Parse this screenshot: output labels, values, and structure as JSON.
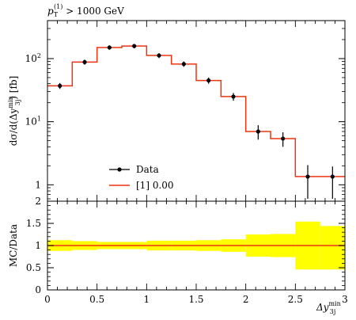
{
  "chart_data": [
    {
      "panel": "main",
      "type": "line",
      "title": "p_T^(1) > 1000 GeV",
      "title_parts": {
        "p": "p",
        "sub": "T",
        "sup": "(1)",
        "rest": " > 1000 GeV"
      },
      "ylabel_parts": {
        "pre": "dσ/d(Δy",
        "sup": "min",
        "sub": "3j",
        "post": ") [fb]"
      },
      "yscale": "log",
      "ylim": [
        0.55,
        400
      ],
      "xlim": [
        0,
        3
      ],
      "yticks": [
        {
          "value": 1,
          "label": "1"
        },
        {
          "value": 10,
          "label": "10",
          "exp": "1"
        },
        {
          "value": 100,
          "label": "10",
          "exp": "2"
        }
      ],
      "bin_edges": [
        0,
        0.25,
        0.5,
        0.75,
        1.0,
        1.25,
        1.5,
        1.75,
        2.0,
        2.25,
        2.5,
        2.75,
        3.0
      ],
      "series": [
        {
          "name": "Data",
          "style": "points-with-errors",
          "color": "#000000",
          "x": [
            0.125,
            0.375,
            0.625,
            0.875,
            1.125,
            1.375,
            1.625,
            1.875,
            2.125,
            2.375,
            2.625,
            2.875
          ],
          "y": [
            37,
            88,
            150,
            158,
            112,
            82,
            45,
            25,
            7.0,
            5.4,
            1.35,
            1.35
          ],
          "yerr_lo": [
            4,
            8,
            12,
            12,
            10,
            8,
            5,
            3.5,
            1.8,
            1.4,
            0.75,
            0.75
          ],
          "yerr_hi": [
            4,
            8,
            12,
            12,
            10,
            8,
            5,
            3.5,
            1.8,
            1.4,
            0.7,
            0.6
          ]
        },
        {
          "name": "[1] 0.00",
          "style": "histogram",
          "color": "#ee3311",
          "values": [
            37,
            88,
            150,
            158,
            112,
            82,
            45,
            25,
            7.0,
            5.4,
            1.35,
            1.35
          ]
        }
      ],
      "legend": {
        "placement": "bottom-left",
        "entries": [
          "Data",
          "[1] 0.00"
        ]
      }
    },
    {
      "panel": "ratio",
      "type": "area",
      "ylabel": "MC/Data",
      "xlabel_parts": {
        "pre": "Δy",
        "sup": "min",
        "sub": "3j"
      },
      "ylim": [
        0,
        2
      ],
      "xlim": [
        0,
        3
      ],
      "yticks": [
        {
          "value": 0,
          "label": "0"
        },
        {
          "value": 0.5,
          "label": "0.5"
        },
        {
          "value": 1,
          "label": "1"
        },
        {
          "value": 1.5,
          "label": "1.5"
        },
        {
          "value": 2,
          "label": "2"
        }
      ],
      "xticks": [
        {
          "value": 0,
          "label": "0"
        },
        {
          "value": 0.5,
          "label": "0.5"
        },
        {
          "value": 1,
          "label": "1"
        },
        {
          "value": 1.5,
          "label": "1.5"
        },
        {
          "value": 2,
          "label": "2"
        },
        {
          "value": 2.5,
          "label": "2.5"
        },
        {
          "value": 3,
          "label": "3"
        }
      ],
      "bin_edges": [
        0,
        0.25,
        0.5,
        0.75,
        1.0,
        1.25,
        1.5,
        1.75,
        2.0,
        2.25,
        2.5,
        2.75,
        3.0
      ],
      "band_color": "#ffff00",
      "line_color": "#ee3311",
      "band_lo": [
        0.88,
        0.9,
        0.92,
        0.92,
        0.89,
        0.89,
        0.88,
        0.86,
        0.75,
        0.74,
        0.46,
        0.46
      ],
      "band_hi": [
        1.12,
        1.1,
        1.08,
        1.08,
        1.11,
        1.11,
        1.12,
        1.14,
        1.25,
        1.26,
        1.54,
        1.44
      ],
      "ratio": [
        1,
        1,
        1,
        1,
        1,
        1,
        1,
        1,
        1,
        1,
        1,
        1
      ]
    }
  ]
}
